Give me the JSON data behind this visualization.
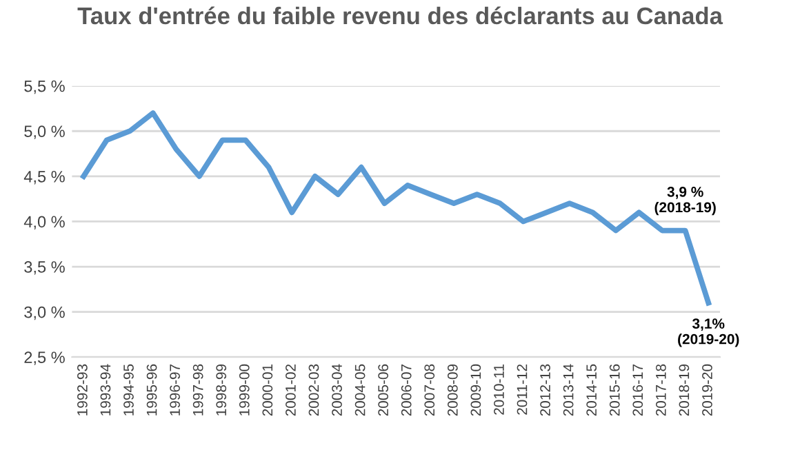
{
  "chart_data": {
    "type": "line",
    "title": "Taux d'entrée du faible revenu des déclarants au Canada",
    "categories": [
      "1992-93",
      "1993-94",
      "1994-95",
      "1995-96",
      "1996-97",
      "1997-98",
      "1998-99",
      "1999-00",
      "2000-01",
      "2001-02",
      "2002-03",
      "2003-04",
      "2004-05",
      "2005-06",
      "2006-07",
      "2007-08",
      "2008-09",
      "2009-10",
      "2010-11",
      "2011-12",
      "2012-13",
      "2013-14",
      "2014-15",
      "2015-16",
      "2016-17",
      "2017-18",
      "2018-19",
      "2019-20"
    ],
    "series": [
      {
        "color": "#5b9bd5",
        "values": [
          4.5,
          4.9,
          5.0,
          5.2,
          4.8,
          4.5,
          4.9,
          4.9,
          4.6,
          4.1,
          4.5,
          4.3,
          4.6,
          4.2,
          4.4,
          4.3,
          4.2,
          4.3,
          4.2,
          4.0,
          4.1,
          4.2,
          4.1,
          3.9,
          4.1,
          3.9,
          3.9,
          3.1
        ]
      }
    ],
    "ylim": [
      2.5,
      5.5
    ],
    "yticks": [
      {
        "value": 2.5,
        "label": "2,5 %"
      },
      {
        "value": 3.0,
        "label": "3,0 %"
      },
      {
        "value": 3.5,
        "label": "3,5 %"
      },
      {
        "value": 4.0,
        "label": "4,0 %"
      },
      {
        "value": 4.5,
        "label": "4,5 %"
      },
      {
        "value": 5.0,
        "label": "5,0 %"
      },
      {
        "value": 5.5,
        "label": "5,5 %"
      }
    ],
    "grid": "y",
    "marker": "none",
    "line_style": "solid",
    "annotations": [
      {
        "text": "3,9 %\n(2018-19)",
        "x": "2018-19",
        "y": 3.9
      },
      {
        "text": "3,1%\n(2019-20)",
        "x": "2019-20",
        "y": 3.1
      }
    ]
  }
}
